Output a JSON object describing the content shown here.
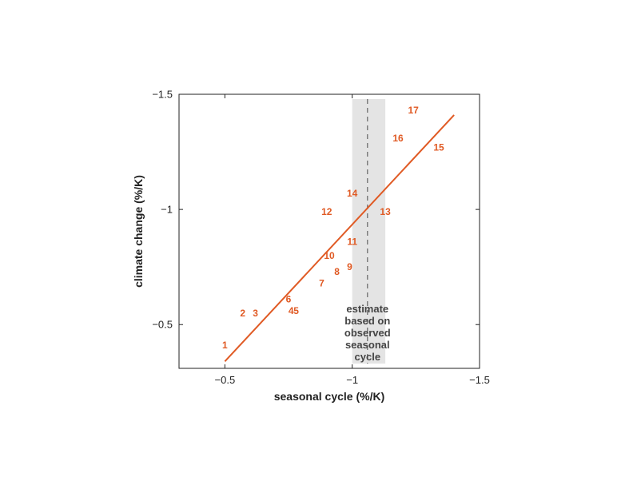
{
  "chart_data": {
    "type": "scatter",
    "title": "",
    "xlabel": "seasonal cycle (%/K)",
    "ylabel": "climate change (%/K)",
    "xlim": [
      -0.32,
      -1.5
    ],
    "ylim": [
      -0.31,
      -1.5
    ],
    "x_ticks": [
      -0.5,
      -1,
      -1.5
    ],
    "x_tick_labels": [
      "−0.5",
      "−1",
      "−1.5"
    ],
    "y_ticks": [
      -0.5,
      -1,
      -1.5
    ],
    "y_tick_labels": [
      "−0.5",
      "−1",
      "−1.5"
    ],
    "grid": false,
    "colors": {
      "series": "#e05a24",
      "shade": "#e4e4e4",
      "dashed": "#666666"
    },
    "points": [
      {
        "label": "1",
        "x": -0.5,
        "y": -0.41
      },
      {
        "label": "2",
        "x": -0.57,
        "y": -0.55
      },
      {
        "label": "3",
        "x": -0.62,
        "y": -0.55
      },
      {
        "label": "4",
        "x": -0.76,
        "y": -0.56
      },
      {
        "label": "5",
        "x": -0.78,
        "y": -0.56
      },
      {
        "label": "6",
        "x": -0.75,
        "y": -0.61
      },
      {
        "label": "7",
        "x": -0.88,
        "y": -0.68
      },
      {
        "label": "8",
        "x": -0.94,
        "y": -0.73
      },
      {
        "label": "9",
        "x": -0.99,
        "y": -0.75
      },
      {
        "label": "10",
        "x": -0.91,
        "y": -0.8
      },
      {
        "label": "11",
        "x": -1.0,
        "y": -0.86
      },
      {
        "label": "12",
        "x": -0.9,
        "y": -0.99
      },
      {
        "label": "13",
        "x": -1.13,
        "y": -0.99
      },
      {
        "label": "14",
        "x": -1.0,
        "y": -1.07
      },
      {
        "label": "15",
        "x": -1.34,
        "y": -1.27
      },
      {
        "label": "16",
        "x": -1.18,
        "y": -1.31
      },
      {
        "label": "17",
        "x": -1.24,
        "y": -1.43
      }
    ],
    "fit_line": {
      "x": [
        -0.5,
        -1.4
      ],
      "y": [
        -0.34,
        -1.41
      ]
    },
    "observed_estimate": {
      "x": -1.06,
      "range": [
        -1.0,
        -1.13
      ]
    },
    "annotation": "estimate based on observed seasonal cycle",
    "annotation_lines": [
      "estimate",
      "based on",
      "observed",
      "seasonal",
      "cycle"
    ]
  }
}
